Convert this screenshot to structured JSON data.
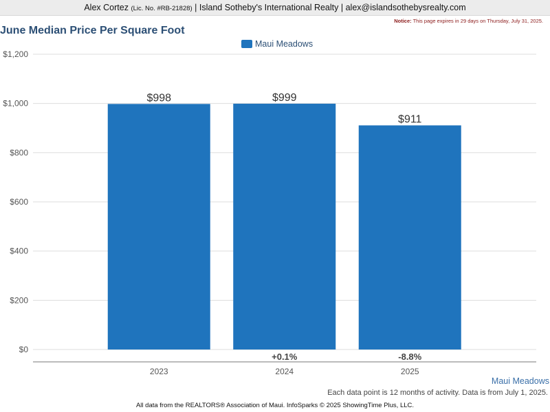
{
  "header": {
    "agent_name": "Alex Cortez",
    "license": "(Lic. No. #RB-21828)",
    "brokerage": "| Island Sotheby's International Realty |",
    "email": "alex@islandsothebysrealty.com"
  },
  "notice": {
    "label": "Notice:",
    "text": "This page expires in 29 days on Thursday, July 31, 2025."
  },
  "colors": {
    "bar": "#1f74bd",
    "title": "#2c4f75",
    "grid": "#dddddd"
  },
  "chart_data": {
    "type": "bar",
    "title": "June Median Price Per Square Foot",
    "categories": [
      "2023",
      "2024",
      "2025"
    ],
    "series": [
      {
        "name": "Maui Meadows",
        "values": [
          998,
          999,
          911
        ],
        "value_labels": [
          "$998",
          "$999",
          "$911"
        ]
      }
    ],
    "change_labels": [
      "",
      "+0.1%",
      "-8.8%"
    ],
    "ylim": [
      0,
      1200
    ],
    "yticks": [
      0,
      200,
      400,
      600,
      800,
      1000,
      1200
    ],
    "ytick_labels": [
      "$0",
      "$200",
      "$400",
      "$600",
      "$800",
      "$1,000",
      "$1,200"
    ],
    "xlabel": "",
    "ylabel": "",
    "grid": true,
    "legend": "top-center"
  },
  "series_link": "Maui Meadows",
  "footnote": "Each data point is 12 months of activity. Data is from July 1, 2025.",
  "footer": "All data from the REALTORS® Association of Maui. InfoSparks © 2025 ShowingTime Plus, LLC."
}
